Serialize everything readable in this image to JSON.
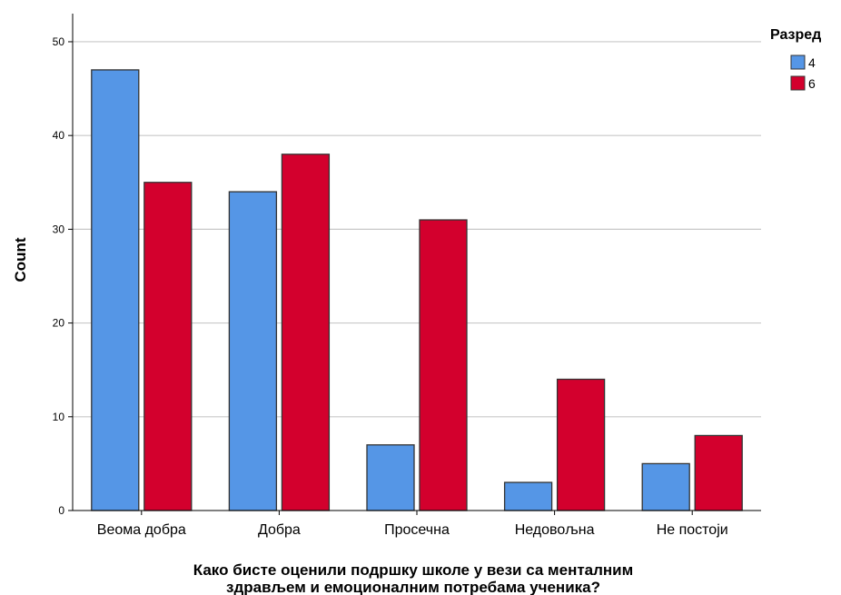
{
  "chart_data": {
    "type": "bar",
    "categories": [
      "Веома добра",
      "Добра",
      "Просечна",
      "Недовољна",
      "Не постоји"
    ],
    "series": [
      {
        "name": "4",
        "color": "#5596e6",
        "values": [
          47,
          34,
          7,
          3,
          5
        ]
      },
      {
        "name": "6",
        "color": "#d3002d",
        "values": [
          35,
          38,
          31,
          14,
          8
        ]
      }
    ],
    "ylabel": "Count",
    "xlabel_lines": [
      "Како бисте оценили подршку школе у вези са менталним",
      "здрављем и емоционалним потребама ученика?"
    ],
    "ylim": [
      0,
      53
    ],
    "yticks": [
      0,
      10,
      20,
      30,
      40,
      50
    ],
    "legend_title": "Разред",
    "legend_position": "top-right",
    "grid": true
  }
}
